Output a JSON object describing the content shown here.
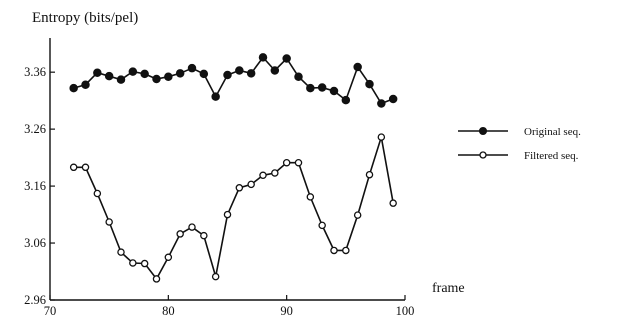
{
  "chart_data": {
    "type": "line",
    "title": "Entropy (bits/pel)",
    "xlabel": "frame",
    "ylabel": "Entropy (bits/pel)",
    "xlim": [
      70,
      100
    ],
    "ylim": [
      2.96,
      3.42
    ],
    "xticks": [
      70,
      80,
      90,
      100
    ],
    "yticks": [
      2.96,
      3.06,
      3.16,
      3.26,
      3.36
    ],
    "x_tick_labels": [
      "70",
      "80",
      "90",
      "100"
    ],
    "y_tick_labels": [
      "2.96",
      "3.06",
      "3.16",
      "3.26",
      "3.36"
    ],
    "grid": false,
    "legend_position": "right",
    "x": [
      72,
      73,
      74,
      75,
      76,
      77,
      78,
      79,
      80,
      81,
      82,
      83,
      84,
      85,
      86,
      87,
      88,
      89,
      90,
      91,
      92,
      93,
      94,
      95,
      96,
      97,
      98,
      99
    ],
    "series": [
      {
        "name": "Original seq.",
        "marker": "filled-circle",
        "color": "#111111",
        "values": [
          3.332,
          3.338,
          3.359,
          3.353,
          3.347,
          3.361,
          3.357,
          3.348,
          3.352,
          3.358,
          3.367,
          3.357,
          3.317,
          3.355,
          3.363,
          3.358,
          3.386,
          3.363,
          3.384,
          3.352,
          3.332,
          3.333,
          3.327,
          3.311,
          3.369,
          3.339,
          3.305,
          3.313
        ]
      },
      {
        "name": "Filtered seq.",
        "marker": "open-circle",
        "color": "#111111",
        "values": [
          3.193,
          3.193,
          3.147,
          3.097,
          3.044,
          3.025,
          3.024,
          2.997,
          3.035,
          3.076,
          3.088,
          3.073,
          3.001,
          3.11,
          3.157,
          3.163,
          3.179,
          3.183,
          3.201,
          3.201,
          3.141,
          3.091,
          3.047,
          3.047,
          3.109,
          3.18,
          3.246,
          3.13
        ]
      }
    ]
  }
}
